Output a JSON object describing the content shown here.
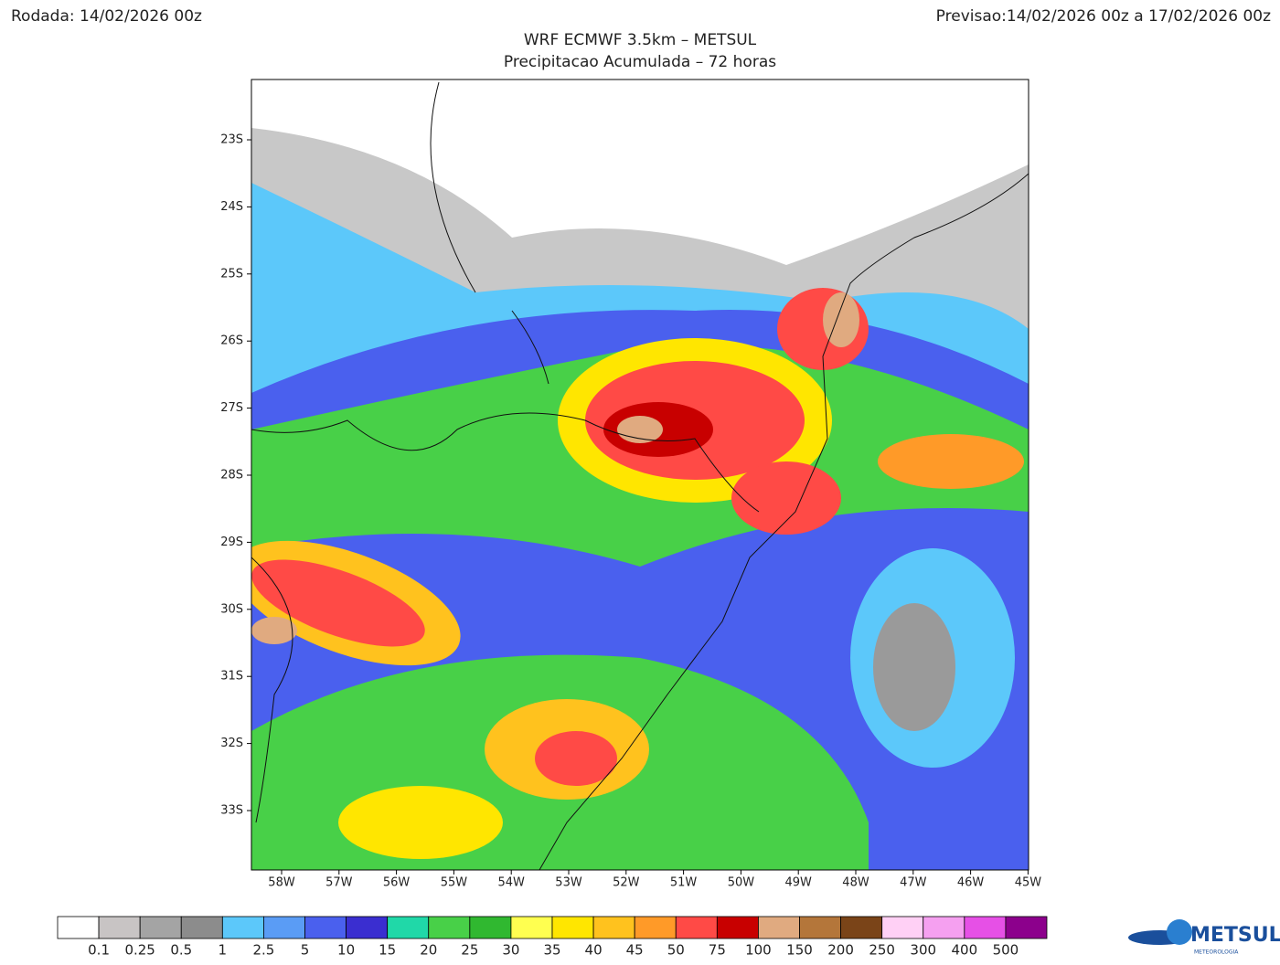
{
  "header": {
    "run": "Rodada: 14/02/2026 00z",
    "forecast": "Previsao:14/02/2026 00z a 17/02/2026 00z",
    "title": "WRF ECMWF 3.5km – METSUL",
    "subtitle": "Precipitacao Acumulada – 72 horas"
  },
  "map": {
    "lat_labels": [
      "23S",
      "24S",
      "25S",
      "26S",
      "27S",
      "28S",
      "29S",
      "30S",
      "31S",
      "32S",
      "33S"
    ],
    "lon_labels": [
      "58W",
      "57W",
      "56W",
      "55W",
      "54W",
      "53W",
      "52W",
      "51W",
      "50W",
      "49W",
      "48W",
      "47W",
      "46W",
      "45W"
    ]
  },
  "colorbar": {
    "labels": [
      "0.1",
      "0.25",
      "0.5",
      "1",
      "2.5",
      "5",
      "10",
      "15",
      "20",
      "25",
      "30",
      "35",
      "40",
      "45",
      "50",
      "75",
      "100",
      "150",
      "200",
      "250",
      "300",
      "400",
      "500"
    ],
    "colors": [
      "#ffffff",
      "#c8c4c4",
      "#a4a4a4",
      "#8c8c8c",
      "#5cc8fa",
      "#5a9cf5",
      "#4a60ee",
      "#3a2ed0",
      "#20d8a8",
      "#48d048",
      "#30b830",
      "#ffff50",
      "#ffe600",
      "#ffc21e",
      "#ff9a28",
      "#ff4a46",
      "#c80000",
      "#e0aa80",
      "#b4763a",
      "#7a4418",
      "#ffd0f5",
      "#f5a0f0",
      "#e650e6",
      "#8c008c"
    ]
  },
  "logo": {
    "name": "METSUL",
    "tagline": "METEOROLOGIA"
  }
}
